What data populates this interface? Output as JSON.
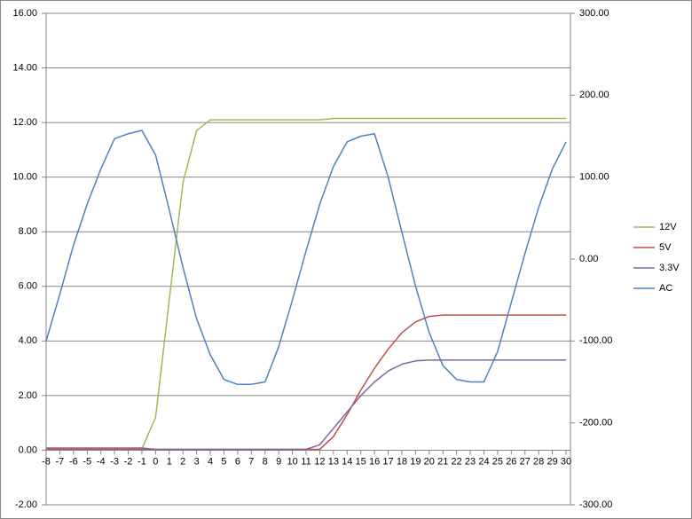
{
  "chart_data": {
    "type": "line",
    "x": [
      -8,
      -7,
      -6,
      -5,
      -4,
      -3,
      -2,
      -1,
      0,
      1,
      2,
      3,
      4,
      5,
      6,
      7,
      8,
      9,
      10,
      11,
      12,
      13,
      14,
      15,
      16,
      17,
      18,
      19,
      20,
      21,
      22,
      23,
      24,
      25,
      26,
      27,
      28,
      29,
      30
    ],
    "xlim": [
      -8,
      30
    ],
    "xticks": [
      -8,
      -7,
      -6,
      -5,
      -4,
      -3,
      -2,
      -1,
      0,
      1,
      2,
      3,
      4,
      5,
      6,
      7,
      8,
      9,
      10,
      11,
      12,
      13,
      14,
      15,
      16,
      17,
      18,
      19,
      20,
      21,
      22,
      23,
      24,
      25,
      26,
      27,
      28,
      29,
      30
    ],
    "ylim": [
      -2,
      16
    ],
    "yticks": [
      {
        "value": -2,
        "label": "-2.00"
      },
      {
        "value": 0,
        "label": "0.00"
      },
      {
        "value": 2,
        "label": "2.00"
      },
      {
        "value": 4,
        "label": "4.00"
      },
      {
        "value": 6,
        "label": "6.00"
      },
      {
        "value": 8,
        "label": "8.00"
      },
      {
        "value": 10,
        "label": "10.00"
      },
      {
        "value": 12,
        "label": "12.00"
      },
      {
        "value": 14,
        "label": "14.00"
      },
      {
        "value": 16,
        "label": "16.00"
      }
    ],
    "y2lim": [
      -300,
      300
    ],
    "y2ticks": [
      {
        "value": -300,
        "label": "-300.00"
      },
      {
        "value": -200,
        "label": "-200.00"
      },
      {
        "value": -100,
        "label": "-100.00"
      },
      {
        "value": 0,
        "label": "0.00"
      },
      {
        "value": 100,
        "label": "100.00"
      },
      {
        "value": 200,
        "label": "200.00"
      },
      {
        "value": 300,
        "label": "300.00"
      }
    ],
    "grid": true,
    "legend": "right",
    "series": [
      {
        "name": "12V",
        "color": "#9bbb59",
        "values": [
          0.05,
          0.05,
          0.05,
          0.05,
          0.05,
          0.05,
          0.05,
          0.05,
          1.2,
          5.5,
          9.8,
          11.7,
          12.1,
          12.1,
          12.1,
          12.1,
          12.1,
          12.1,
          12.1,
          12.1,
          12.1,
          12.15,
          12.15,
          12.15,
          12.15,
          12.15,
          12.15,
          12.15,
          12.15,
          12.15,
          12.15,
          12.15,
          12.15,
          12.15,
          12.15,
          12.15,
          12.15,
          12.15,
          12.15
        ]
      },
      {
        "name": "5V",
        "color": "#c0504d",
        "values": [
          0.08,
          0.08,
          0.08,
          0.08,
          0.08,
          0.08,
          0.08,
          0.08,
          0.03,
          0.03,
          0.03,
          0.03,
          0.03,
          0.03,
          0.03,
          0.03,
          0.03,
          0.03,
          0.03,
          0.03,
          0.03,
          0.5,
          1.3,
          2.2,
          3.0,
          3.7,
          4.3,
          4.7,
          4.9,
          4.95,
          4.95,
          4.95,
          4.95,
          4.95,
          4.95,
          4.95,
          4.95,
          4.95,
          4.95
        ]
      },
      {
        "name": "3.3V",
        "color": "#8064a2",
        "values": [
          0.03,
          0.03,
          0.03,
          0.03,
          0.03,
          0.03,
          0.03,
          0.03,
          0.03,
          0.03,
          0.03,
          0.03,
          0.03,
          0.03,
          0.03,
          0.03,
          0.03,
          0.03,
          0.03,
          0.03,
          0.2,
          0.8,
          1.4,
          2.0,
          2.5,
          2.9,
          3.15,
          3.27,
          3.3,
          3.3,
          3.3,
          3.3,
          3.3,
          3.3,
          3.3,
          3.3,
          3.3,
          3.3,
          3.3
        ]
      },
      {
        "name": "AC",
        "color": "#4f81bd",
        "axis": "y2",
        "values": [
          -100,
          -43,
          17,
          67,
          110,
          147,
          153,
          157,
          127,
          60,
          -10,
          -73,
          -117,
          -147,
          -153,
          -153,
          -150,
          -107,
          -50,
          10,
          67,
          113,
          143,
          150,
          153,
          100,
          33,
          -33,
          -90,
          -130,
          -147,
          -150,
          -150,
          -113,
          -53,
          7,
          63,
          110,
          143
        ]
      }
    ]
  }
}
